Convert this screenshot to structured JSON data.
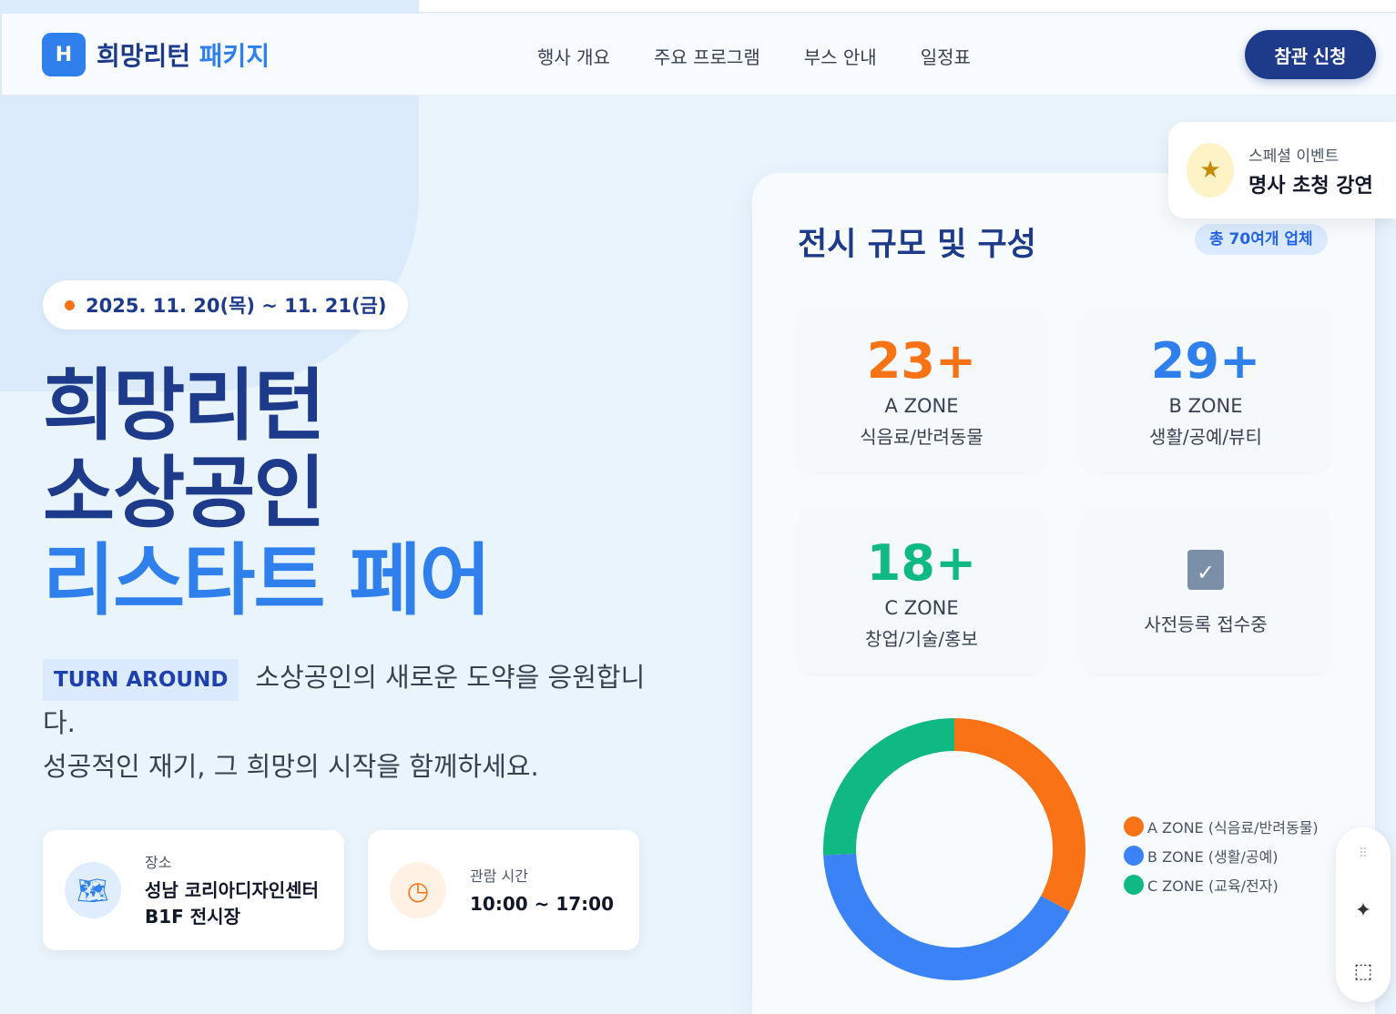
{
  "header": {
    "logo_mark": "H",
    "logo_main": "희망리턴",
    "logo_accent": "패키지",
    "nav": [
      "행사 개요",
      "주요 프로그램",
      "부스 안내",
      "일정표"
    ],
    "cta": "참관 신청"
  },
  "hero": {
    "date": "2025. 11. 20(목) ~ 11. 21(금)",
    "title_line1": "희망리턴",
    "title_line2": "소상공인",
    "title_line3": "리스타트 페어",
    "badge": "TURN AROUND",
    "desc1": "소상공인의 새로운 도약을 응원합니다.",
    "desc2": "성공적인 재기, 그 희망의 시작을 함께하세요."
  },
  "info": {
    "place_label": "장소",
    "place_value1": "성남 코리아디자인센터",
    "place_value2": "B1F 전시장",
    "time_label": "관람 시간",
    "time_value": "10:00 ~ 17:00"
  },
  "special": {
    "label": "스페셜 이벤트",
    "title": "명사 초청 강연"
  },
  "panel": {
    "title": "전시 규모 및 구성",
    "total": "총 70여개 업체",
    "zones": [
      {
        "num": "23+",
        "name": "A ZONE",
        "sub": "식음료/반려동물",
        "color": "#f97316"
      },
      {
        "num": "29+",
        "name": "B ZONE",
        "sub": "생활/공예/뷰티",
        "color": "#2f80ed"
      },
      {
        "num": "18+",
        "name": "C ZONE",
        "sub": "창업/기술/홍보",
        "color": "#10b981"
      }
    ],
    "register": "사전등록 접수중"
  },
  "chart_data": {
    "type": "pie",
    "donut": true,
    "categories": [
      "A ZONE (식음료/반려동물)",
      "B ZONE (생활/공예)",
      "C ZONE (교육/전자)"
    ],
    "values": [
      23,
      29,
      18
    ],
    "colors": [
      "#f97316",
      "#3b82f6",
      "#10b981"
    ],
    "legend": "right"
  }
}
